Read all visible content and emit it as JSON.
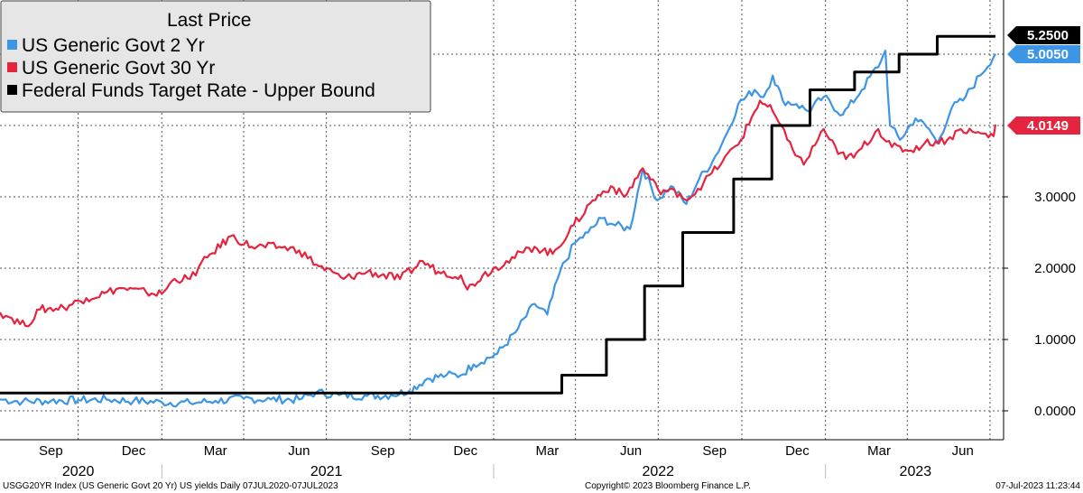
{
  "chart_data": {
    "type": "line",
    "legend_title": "Last Price",
    "legend_placement": "top-left",
    "grid": true,
    "x_range": [
      "2020-07-07",
      "2023-07-07"
    ],
    "ylim": [
      -0.4,
      5.75
    ],
    "y_ticks": [
      {
        "value": 0,
        "label": "0.0000"
      },
      {
        "value": 1,
        "label": "1.0000"
      },
      {
        "value": 2,
        "label": "2.0000"
      },
      {
        "value": 3,
        "label": "3.0000"
      }
    ],
    "x_tick_dates": [
      "2020-07-01",
      "2020-10-01",
      "2021-01-01",
      "2021-04-01",
      "2021-07-01",
      "2021-10-01",
      "2022-01-01",
      "2022-04-01",
      "2022-07-01",
      "2022-10-01",
      "2023-01-01",
      "2023-04-01",
      "2023-07-01"
    ],
    "month_labels": [
      {
        "date": "2020-09-01",
        "label": "Sep"
      },
      {
        "date": "2020-12-01",
        "label": "Dec"
      },
      {
        "date": "2021-03-01",
        "label": "Mar"
      },
      {
        "date": "2021-06-01",
        "label": "Jun"
      },
      {
        "date": "2021-09-01",
        "label": "Sep"
      },
      {
        "date": "2021-12-01",
        "label": "Dec"
      },
      {
        "date": "2022-03-01",
        "label": "Mar"
      },
      {
        "date": "2022-06-01",
        "label": "Jun"
      },
      {
        "date": "2022-09-01",
        "label": "Sep"
      },
      {
        "date": "2022-12-01",
        "label": "Dec"
      },
      {
        "date": "2023-03-01",
        "label": "Mar"
      },
      {
        "date": "2023-06-01",
        "label": "Jun"
      }
    ],
    "year_labels": [
      {
        "date": "2020-10-01",
        "label": "2020"
      },
      {
        "date": "2021-07-01",
        "label": "2021"
      },
      {
        "date": "2022-07-01",
        "label": "2022"
      },
      {
        "date": "2023-04-10",
        "label": "2023"
      }
    ],
    "year_dividers": [
      "2021-01-01",
      "2022-01-01",
      "2023-01-01"
    ],
    "series": [
      {
        "name": "US Generic Govt 2 Yr",
        "color": "#3d95e6",
        "last_value": "5.0050",
        "points": [
          [
            "2020-07-07",
            0.16
          ],
          [
            "2020-08-01",
            0.13
          ],
          [
            "2020-09-01",
            0.14
          ],
          [
            "2020-10-01",
            0.15
          ],
          [
            "2020-11-01",
            0.16
          ],
          [
            "2020-12-01",
            0.14
          ],
          [
            "2021-01-01",
            0.12
          ],
          [
            "2021-02-01",
            0.11
          ],
          [
            "2021-03-01",
            0.14
          ],
          [
            "2021-04-01",
            0.17
          ],
          [
            "2021-05-01",
            0.16
          ],
          [
            "2021-06-01",
            0.16
          ],
          [
            "2021-06-20",
            0.26
          ],
          [
            "2021-07-15",
            0.22
          ],
          [
            "2021-08-15",
            0.21
          ],
          [
            "2021-09-10",
            0.22
          ],
          [
            "2021-09-30",
            0.28
          ],
          [
            "2021-10-20",
            0.45
          ],
          [
            "2021-11-10",
            0.5
          ],
          [
            "2021-11-26",
            0.5
          ],
          [
            "2021-12-10",
            0.65
          ],
          [
            "2022-01-05",
            0.8
          ],
          [
            "2022-01-25",
            1.1
          ],
          [
            "2022-02-15",
            1.5
          ],
          [
            "2022-03-01",
            1.35
          ],
          [
            "2022-03-15",
            1.95
          ],
          [
            "2022-03-31",
            2.35
          ],
          [
            "2022-04-15",
            2.5
          ],
          [
            "2022-04-30",
            2.7
          ],
          [
            "2022-05-15",
            2.6
          ],
          [
            "2022-05-31",
            2.55
          ],
          [
            "2022-06-14",
            3.4
          ],
          [
            "2022-06-30",
            2.95
          ],
          [
            "2022-07-15",
            3.15
          ],
          [
            "2022-08-01",
            2.9
          ],
          [
            "2022-08-15",
            3.25
          ],
          [
            "2022-08-30",
            3.5
          ],
          [
            "2022-09-15",
            3.9
          ],
          [
            "2022-09-27",
            4.3
          ],
          [
            "2022-10-15",
            4.5
          ],
          [
            "2022-10-25",
            4.4
          ],
          [
            "2022-11-04",
            4.7
          ],
          [
            "2022-11-15",
            4.35
          ],
          [
            "2022-11-30",
            4.3
          ],
          [
            "2022-12-13",
            4.2
          ],
          [
            "2022-12-30",
            4.4
          ],
          [
            "2023-01-20",
            4.15
          ],
          [
            "2023-02-10",
            4.5
          ],
          [
            "2023-03-03",
            4.9
          ],
          [
            "2023-03-08",
            5.05
          ],
          [
            "2023-03-13",
            4.0
          ],
          [
            "2023-03-24",
            3.8
          ],
          [
            "2023-04-10",
            4.1
          ],
          [
            "2023-04-25",
            3.95
          ],
          [
            "2023-05-04",
            3.75
          ],
          [
            "2023-05-20",
            4.25
          ],
          [
            "2023-06-01",
            4.35
          ],
          [
            "2023-06-20",
            4.7
          ],
          [
            "2023-07-07",
            5.005
          ]
        ]
      },
      {
        "name": "US Generic Govt 30 Yr",
        "color": "#e5253f",
        "last_value": "4.0149",
        "points": [
          [
            "2020-07-07",
            1.38
          ],
          [
            "2020-07-20",
            1.3
          ],
          [
            "2020-08-04",
            1.19
          ],
          [
            "2020-08-20",
            1.42
          ],
          [
            "2020-09-15",
            1.45
          ],
          [
            "2020-10-10",
            1.58
          ],
          [
            "2020-10-30",
            1.65
          ],
          [
            "2020-11-15",
            1.72
          ],
          [
            "2020-12-15",
            1.66
          ],
          [
            "2021-01-01",
            1.64
          ],
          [
            "2021-01-15",
            1.85
          ],
          [
            "2021-02-01",
            1.85
          ],
          [
            "2021-02-20",
            2.15
          ],
          [
            "2021-03-18",
            2.45
          ],
          [
            "2021-04-10",
            2.3
          ],
          [
            "2021-05-10",
            2.3
          ],
          [
            "2021-06-01",
            2.25
          ],
          [
            "2021-06-20",
            2.05
          ],
          [
            "2021-07-20",
            1.85
          ],
          [
            "2021-08-15",
            1.95
          ],
          [
            "2021-09-20",
            1.85
          ],
          [
            "2021-10-15",
            2.1
          ],
          [
            "2021-11-01",
            1.95
          ],
          [
            "2021-11-26",
            1.9
          ],
          [
            "2021-12-03",
            1.7
          ],
          [
            "2021-12-20",
            1.9
          ],
          [
            "2022-01-15",
            2.1
          ],
          [
            "2022-02-15",
            2.3
          ],
          [
            "2022-03-07",
            2.2
          ],
          [
            "2022-03-30",
            2.6
          ],
          [
            "2022-04-20",
            2.95
          ],
          [
            "2022-05-10",
            3.15
          ],
          [
            "2022-05-25",
            3.0
          ],
          [
            "2022-06-14",
            3.4
          ],
          [
            "2022-07-01",
            3.1
          ],
          [
            "2022-07-25",
            3.05
          ],
          [
            "2022-08-01",
            2.95
          ],
          [
            "2022-08-20",
            3.2
          ],
          [
            "2022-09-10",
            3.5
          ],
          [
            "2022-09-30",
            3.8
          ],
          [
            "2022-10-21",
            4.35
          ],
          [
            "2022-11-04",
            4.2
          ],
          [
            "2022-11-20",
            3.8
          ],
          [
            "2022-12-08",
            3.45
          ],
          [
            "2022-12-30",
            3.95
          ],
          [
            "2023-01-15",
            3.6
          ],
          [
            "2023-02-01",
            3.55
          ],
          [
            "2023-02-28",
            3.95
          ],
          [
            "2023-03-15",
            3.7
          ],
          [
            "2023-04-05",
            3.65
          ],
          [
            "2023-04-20",
            3.75
          ],
          [
            "2023-05-15",
            3.8
          ],
          [
            "2023-05-30",
            3.95
          ],
          [
            "2023-06-15",
            3.9
          ],
          [
            "2023-07-05",
            3.85
          ],
          [
            "2023-07-07",
            4.0149
          ]
        ]
      },
      {
        "name": "Federal Funds Target Rate - Upper Bound",
        "color": "#000000",
        "last_value": "5.2500",
        "steps": [
          [
            "2020-07-07",
            0.25
          ],
          [
            "2022-03-17",
            0.5
          ],
          [
            "2022-05-05",
            1.0
          ],
          [
            "2022-06-16",
            1.75
          ],
          [
            "2022-07-28",
            2.5
          ],
          [
            "2022-09-22",
            3.25
          ],
          [
            "2022-11-03",
            4.0
          ],
          [
            "2022-12-15",
            4.5
          ],
          [
            "2023-02-02",
            4.75
          ],
          [
            "2023-03-23",
            5.0
          ],
          [
            "2023-05-04",
            5.25
          ],
          [
            "2023-07-07",
            5.25
          ]
        ]
      }
    ]
  },
  "footer": {
    "left": "USGG20YR Index (US Generic Govt 20 Yr) US yields  Daily 07JUL2020-07JUL2023",
    "center": "Copyright© 2023 Bloomberg Finance L.P.",
    "right": "07-Jul-2023 11:23:44"
  }
}
